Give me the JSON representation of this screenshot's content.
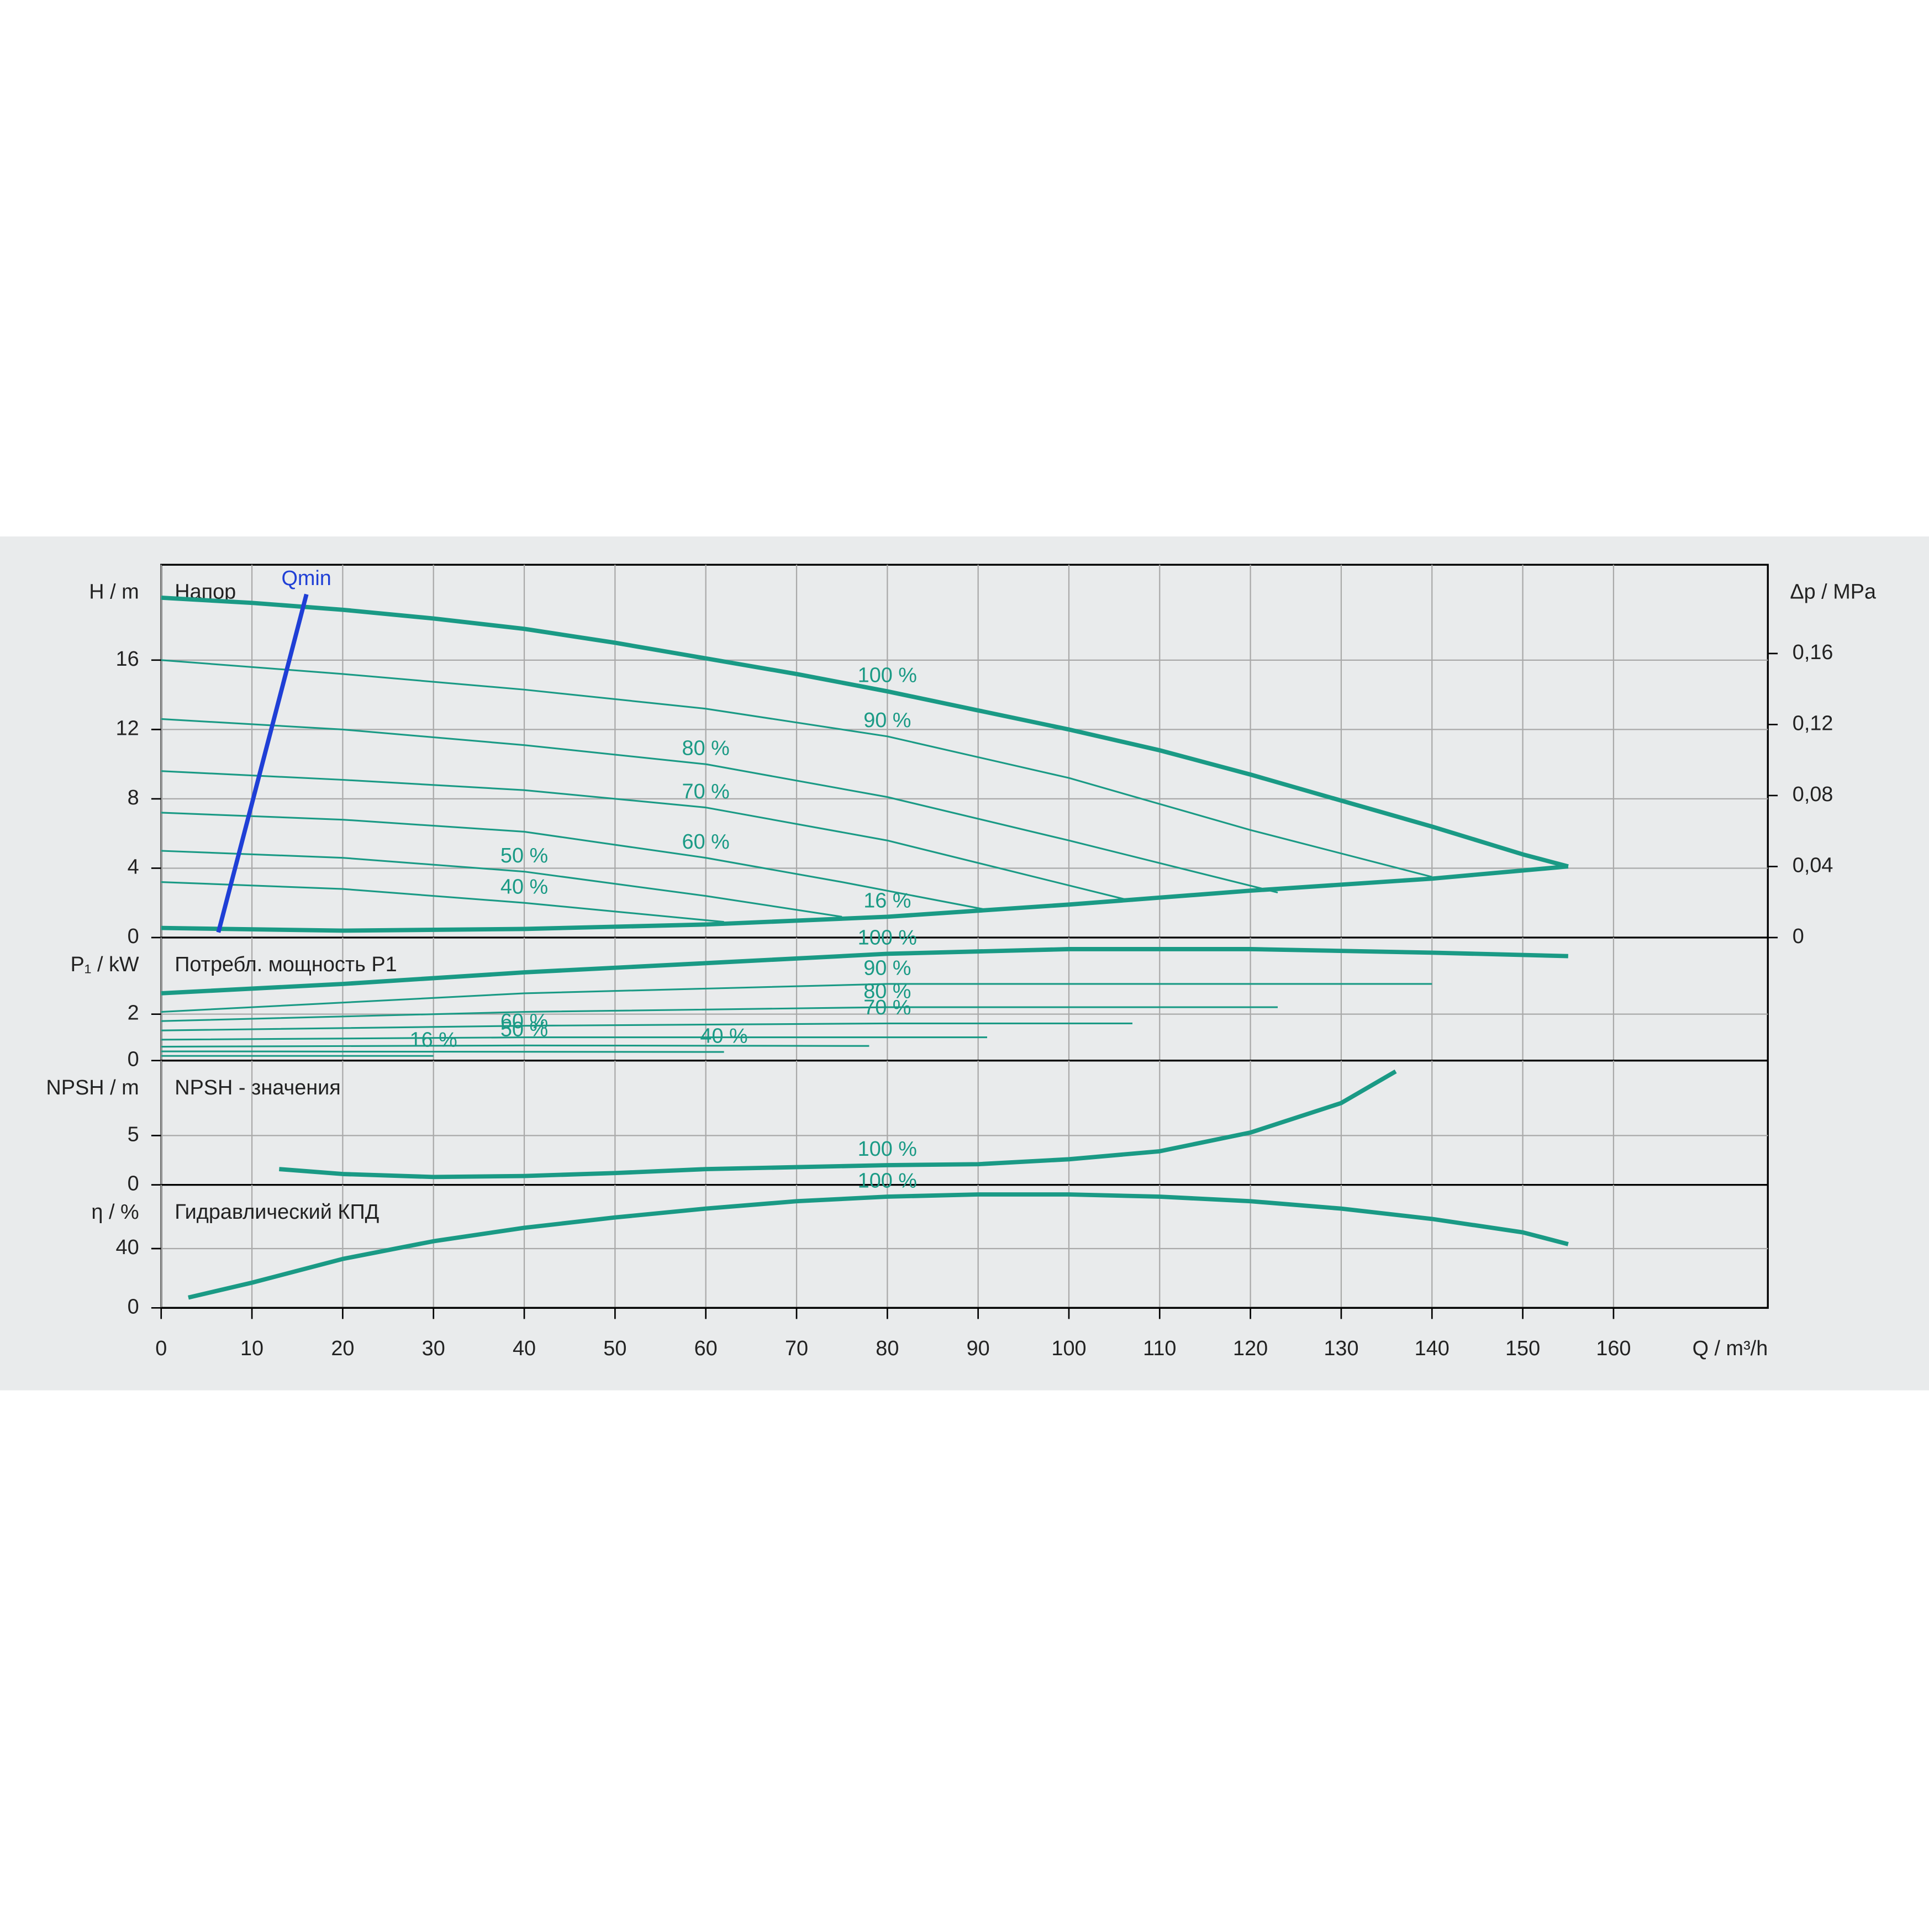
{
  "chart_data": [
    {
      "type": "line",
      "title": "Напор",
      "y_label": "H / m",
      "y2_label": "Δp / MPa",
      "xlim": [
        0,
        177
      ],
      "ylim": [
        0,
        21.5
      ],
      "yticks": [
        0,
        4,
        8,
        12,
        16
      ],
      "y2lim": [
        0,
        0.21
      ],
      "y2ticks": [
        0,
        {
          "value": 0.04,
          "label": "0,04"
        },
        {
          "value": 0.08,
          "label": "0,08"
        },
        {
          "value": 0.12,
          "label": "0,12"
        },
        {
          "value": 0.16,
          "label": "0,16"
        }
      ],
      "grid": true,
      "series": [
        {
          "name": "100 %",
          "color": "#1a9a85",
          "bold": true,
          "x": [
            0,
            10,
            20,
            30,
            40,
            50,
            60,
            70,
            80,
            90,
            100,
            110,
            120,
            130,
            140,
            150,
            155
          ],
          "values": [
            19.6,
            19.3,
            18.9,
            18.4,
            17.8,
            17.0,
            16.1,
            15.2,
            14.2,
            13.1,
            12.0,
            10.8,
            9.4,
            7.9,
            6.4,
            4.8,
            4.1
          ]
        },
        {
          "name": "90 %",
          "color": "#1a9a85",
          "x": [
            0,
            20,
            40,
            60,
            80,
            100,
            120,
            140
          ],
          "values": [
            16.0,
            15.2,
            14.3,
            13.2,
            11.6,
            9.2,
            6.2,
            3.5
          ]
        },
        {
          "name": "80 %",
          "color": "#1a9a85",
          "x": [
            0,
            20,
            40,
            60,
            80,
            100,
            123
          ],
          "values": [
            12.6,
            12.0,
            11.1,
            10.0,
            8.1,
            5.6,
            2.6
          ]
        },
        {
          "name": "70 %",
          "color": "#1a9a85",
          "x": [
            0,
            20,
            40,
            60,
            80,
            107
          ],
          "values": [
            9.6,
            9.1,
            8.5,
            7.5,
            5.6,
            2.1
          ]
        },
        {
          "name": "60 %",
          "color": "#1a9a85",
          "x": [
            0,
            20,
            40,
            60,
            75,
            91
          ],
          "values": [
            7.2,
            6.8,
            6.1,
            4.6,
            3.2,
            1.6
          ]
        },
        {
          "name": "50 %",
          "color": "#1a9a85",
          "x": [
            0,
            20,
            40,
            60,
            75
          ],
          "values": [
            5.0,
            4.6,
            3.8,
            2.4,
            1.2
          ]
        },
        {
          "name": "40 %",
          "color": "#1a9a85",
          "x": [
            0,
            20,
            40,
            62
          ],
          "values": [
            3.2,
            2.8,
            2.0,
            0.9
          ]
        },
        {
          "name": "16 %",
          "color": "#1a9a85",
          "bold": true,
          "x": [
            0,
            20,
            40,
            60,
            80,
            100,
            120,
            140,
            155
          ],
          "values": [
            0.55,
            0.4,
            0.5,
            0.75,
            1.2,
            1.9,
            2.7,
            3.4,
            4.1
          ]
        },
        {
          "name": "Qmin",
          "color": "#1f3fd6",
          "bold": true,
          "x": [
            6.3,
            16
          ],
          "values": [
            0.3,
            19.8
          ]
        }
      ]
    },
    {
      "type": "line",
      "title": "Потребл. мощность P1",
      "y_label": "P₁ / kW",
      "xlim": [
        0,
        177
      ],
      "ylim": [
        0,
        5.3
      ],
      "yticks": [
        0,
        2
      ],
      "grid": true,
      "series": [
        {
          "name": "100 %",
          "color": "#1a9a85",
          "bold": true,
          "x": [
            0,
            20,
            40,
            60,
            80,
            100,
            120,
            140,
            155
          ],
          "values": [
            2.9,
            3.3,
            3.8,
            4.2,
            4.6,
            4.8,
            4.8,
            4.65,
            4.5
          ]
        },
        {
          "name": "90 %",
          "color": "#1a9a85",
          "x": [
            0,
            40,
            80,
            140
          ],
          "values": [
            2.1,
            2.9,
            3.3,
            3.3
          ]
        },
        {
          "name": "80 %",
          "color": "#1a9a85",
          "x": [
            0,
            40,
            80,
            123
          ],
          "values": [
            1.7,
            2.1,
            2.3,
            2.3
          ]
        },
        {
          "name": "70 %",
          "color": "#1a9a85",
          "x": [
            0,
            40,
            80,
            107
          ],
          "values": [
            1.3,
            1.5,
            1.6,
            1.6
          ]
        },
        {
          "name": "60 %",
          "color": "#1a9a85",
          "x": [
            0,
            40,
            91
          ],
          "values": [
            0.9,
            1.0,
            1.0
          ]
        },
        {
          "name": "50 %",
          "color": "#1a9a85",
          "x": [
            0,
            40,
            78
          ],
          "values": [
            0.6,
            0.65,
            0.63
          ]
        },
        {
          "name": "40 %",
          "color": "#1a9a85",
          "x": [
            0,
            62
          ],
          "values": [
            0.4,
            0.37
          ]
        },
        {
          "name": "16 %",
          "color": "#1a9a85",
          "x": [
            0,
            30
          ],
          "values": [
            0.2,
            0.2
          ]
        }
      ]
    },
    {
      "type": "line",
      "title": "NPSH - значения",
      "y_label": "NPSH / m",
      "xlim": [
        0,
        177
      ],
      "ylim": [
        0,
        12.6
      ],
      "yticks": [
        0,
        5
      ],
      "grid": true,
      "series": [
        {
          "name": "100 %",
          "color": "#1a9a85",
          "bold": true,
          "x": [
            13,
            20,
            30,
            40,
            50,
            60,
            70,
            80,
            90,
            100,
            110,
            120,
            130,
            136
          ],
          "values": [
            1.6,
            1.1,
            0.8,
            0.9,
            1.2,
            1.6,
            1.8,
            2.0,
            2.1,
            2.6,
            3.4,
            5.3,
            8.3,
            11.5
          ]
        }
      ]
    },
    {
      "type": "line",
      "title": "Гидравлический КПД",
      "y_label": "η / %",
      "x_label": "Q / m³/h",
      "xlim": [
        0,
        177
      ],
      "xticks": [
        0,
        10,
        20,
        30,
        40,
        50,
        60,
        70,
        80,
        90,
        100,
        110,
        120,
        130,
        140,
        150,
        160
      ],
      "ylim": [
        0,
        83
      ],
      "yticks": [
        0,
        40
      ],
      "grid": true,
      "series": [
        {
          "name": "100 %",
          "color": "#1a9a85",
          "bold": true,
          "x": [
            3,
            10,
            20,
            30,
            40,
            50,
            60,
            70,
            80,
            90,
            100,
            110,
            120,
            130,
            140,
            150,
            155
          ],
          "values": [
            7,
            17,
            33,
            45,
            54,
            61,
            67,
            72,
            75,
            76.5,
            76.5,
            75,
            72,
            67,
            60,
            51,
            43
          ]
        }
      ]
    }
  ]
}
